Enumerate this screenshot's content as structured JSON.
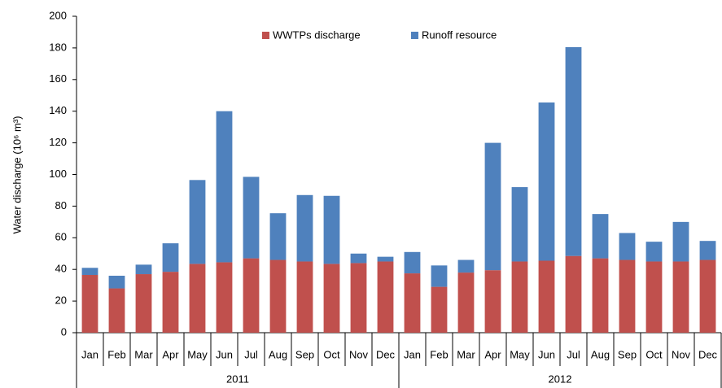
{
  "chart_data": {
    "type": "stacked-bar",
    "y_label": "Water discharge (10⁶ m³)",
    "categories": [
      "Jan",
      "Feb",
      "Mar",
      "Apr",
      "May",
      "Jun",
      "Jul",
      "Aug",
      "Sep",
      "Oct",
      "Nov",
      "Dec",
      "Jan",
      "Feb",
      "Mar",
      "Apr",
      "May",
      "Jun",
      "Jul",
      "Aug",
      "Sep",
      "Oct",
      "Nov",
      "Dec"
    ],
    "groups": [
      "2011",
      "2012"
    ],
    "series": [
      {
        "name": "WWTPs discharge",
        "color": "#c0504d",
        "values": [
          36.5,
          28,
          37,
          38.5,
          43.5,
          44.5,
          47,
          46,
          45,
          43.5,
          44,
          45,
          37.5,
          29,
          38,
          39.5,
          45,
          45.5,
          48.5,
          47,
          46,
          45,
          45,
          46
        ]
      },
      {
        "name": "Runoff resource",
        "color": "#4f81bd",
        "values": [
          4.5,
          8,
          6,
          18,
          53,
          95.5,
          51.5,
          29.5,
          42,
          43,
          6,
          3,
          13.5,
          13.5,
          8,
          80.5,
          47,
          100,
          132,
          28,
          17,
          12.5,
          25,
          12
        ]
      }
    ],
    "ylim": [
      0,
      200
    ],
    "yticks": [
      0,
      20,
      40,
      60,
      80,
      100,
      120,
      140,
      160,
      180,
      200
    ],
    "legend": "top"
  }
}
